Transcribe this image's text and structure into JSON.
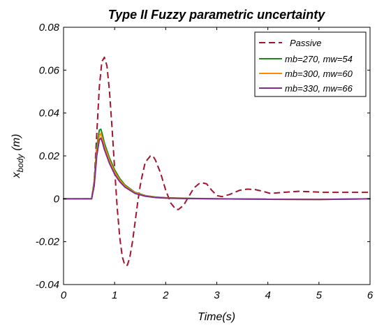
{
  "chart_data": {
    "type": "line",
    "title": "Type II Fuzzy parametric uncertainty",
    "xlabel": "Time(s)",
    "ylabel_main": "x",
    "ylabel_sub": "body",
    "ylabel_unit": "(m)",
    "xlim": [
      0,
      6
    ],
    "ylim": [
      -0.04,
      0.08
    ],
    "x_ticks": [
      0,
      1,
      2,
      3,
      4,
      5,
      6
    ],
    "x_tick_labels": [
      "0",
      "1",
      "2",
      "3",
      "4",
      "5",
      "6"
    ],
    "y_ticks": [
      -0.04,
      -0.02,
      0,
      0.02,
      0.04,
      0.06,
      0.08
    ],
    "y_tick_labels": [
      "-0.04",
      "-0.02",
      "0",
      "0.02",
      "0.04",
      "0.06",
      "0.08"
    ],
    "grid": false,
    "legend_position": "top-right",
    "series": [
      {
        "name": "Passive",
        "color": "#a2142f",
        "dash": "dashed",
        "points": [
          [
            0,
            0
          ],
          [
            0.5,
            0
          ],
          [
            0.55,
            0
          ],
          [
            0.6,
            0.008
          ],
          [
            0.65,
            0.03
          ],
          [
            0.7,
            0.052
          ],
          [
            0.75,
            0.064
          ],
          [
            0.8,
            0.066
          ],
          [
            0.85,
            0.062
          ],
          [
            0.9,
            0.05
          ],
          [
            0.95,
            0.033
          ],
          [
            1.0,
            0.014
          ],
          [
            1.05,
            -0.004
          ],
          [
            1.1,
            -0.018
          ],
          [
            1.15,
            -0.027
          ],
          [
            1.2,
            -0.031
          ],
          [
            1.25,
            -0.031
          ],
          [
            1.3,
            -0.027
          ],
          [
            1.35,
            -0.02
          ],
          [
            1.4,
            -0.011
          ],
          [
            1.45,
            -0.002
          ],
          [
            1.5,
            0.006
          ],
          [
            1.55,
            0.012
          ],
          [
            1.6,
            0.017
          ],
          [
            1.7,
            0.02
          ],
          [
            1.75,
            0.02
          ],
          [
            1.8,
            0.018
          ],
          [
            1.9,
            0.012
          ],
          [
            2.0,
            0.004
          ],
          [
            2.1,
            -0.002
          ],
          [
            2.2,
            -0.005
          ],
          [
            2.25,
            -0.005
          ],
          [
            2.35,
            -0.003
          ],
          [
            2.45,
            0.001
          ],
          [
            2.55,
            0.005
          ],
          [
            2.65,
            0.007
          ],
          [
            2.7,
            0.0075
          ],
          [
            2.8,
            0.007
          ],
          [
            2.9,
            0.004
          ],
          [
            3.0,
            0.0015
          ],
          [
            3.1,
            0.001
          ],
          [
            3.25,
            0.002
          ],
          [
            3.45,
            0.004
          ],
          [
            3.6,
            0.0045
          ],
          [
            3.75,
            0.0043
          ],
          [
            3.9,
            0.0035
          ],
          [
            4.05,
            0.0025
          ],
          [
            4.3,
            0.003
          ],
          [
            4.6,
            0.0035
          ],
          [
            4.85,
            0.0033
          ],
          [
            5.1,
            0.003
          ],
          [
            5.5,
            0.003
          ],
          [
            6.0,
            0.003
          ]
        ]
      },
      {
        "name": "mb=270, mw=54",
        "color": "#1e8a1e",
        "dash": "solid",
        "points": [
          [
            0,
            0
          ],
          [
            0.55,
            0
          ],
          [
            0.6,
            0.008
          ],
          [
            0.65,
            0.024
          ],
          [
            0.7,
            0.032
          ],
          [
            0.73,
            0.0325
          ],
          [
            0.76,
            0.03
          ],
          [
            0.8,
            0.026
          ],
          [
            0.9,
            0.019
          ],
          [
            1.0,
            0.0135
          ],
          [
            1.1,
            0.0095
          ],
          [
            1.2,
            0.0065
          ],
          [
            1.4,
            0.003
          ],
          [
            1.6,
            0.0015
          ],
          [
            1.8,
            0.0008
          ],
          [
            2.0,
            0.0005
          ],
          [
            2.5,
            0.0002
          ],
          [
            3.0,
            0
          ],
          [
            4.0,
            -0.0002
          ],
          [
            5.0,
            -0.0003
          ],
          [
            6.0,
            0
          ]
        ]
      },
      {
        "name": "mb=300, mw=60",
        "color": "#ff8c00",
        "dash": "solid",
        "points": [
          [
            0,
            0
          ],
          [
            0.55,
            0
          ],
          [
            0.6,
            0.007
          ],
          [
            0.65,
            0.022
          ],
          [
            0.7,
            0.0295
          ],
          [
            0.73,
            0.0305
          ],
          [
            0.76,
            0.028
          ],
          [
            0.8,
            0.0245
          ],
          [
            0.9,
            0.0178
          ],
          [
            1.0,
            0.0125
          ],
          [
            1.1,
            0.0088
          ],
          [
            1.2,
            0.006
          ],
          [
            1.4,
            0.0028
          ],
          [
            1.6,
            0.0014
          ],
          [
            1.8,
            0.0007
          ],
          [
            2.0,
            0.0004
          ],
          [
            2.5,
            0.0001
          ],
          [
            3.0,
            0
          ],
          [
            4.0,
            -0.0002
          ],
          [
            5.0,
            -0.0003
          ],
          [
            6.0,
            0
          ]
        ]
      },
      {
        "name": "mb=330, mw=66",
        "color": "#7e2f8e",
        "dash": "solid",
        "points": [
          [
            0,
            0
          ],
          [
            0.55,
            0
          ],
          [
            0.6,
            0.006
          ],
          [
            0.65,
            0.02
          ],
          [
            0.7,
            0.0275
          ],
          [
            0.73,
            0.0283
          ],
          [
            0.76,
            0.0265
          ],
          [
            0.8,
            0.023
          ],
          [
            0.9,
            0.0165
          ],
          [
            1.0,
            0.0115
          ],
          [
            1.1,
            0.008
          ],
          [
            1.2,
            0.0055
          ],
          [
            1.4,
            0.0025
          ],
          [
            1.6,
            0.0012
          ],
          [
            1.8,
            0.0006
          ],
          [
            2.0,
            0.0003
          ],
          [
            2.5,
            0.0001
          ],
          [
            3.0,
            0
          ],
          [
            4.0,
            -0.0002
          ],
          [
            5.0,
            -0.0003
          ],
          [
            6.0,
            0
          ]
        ]
      }
    ]
  }
}
